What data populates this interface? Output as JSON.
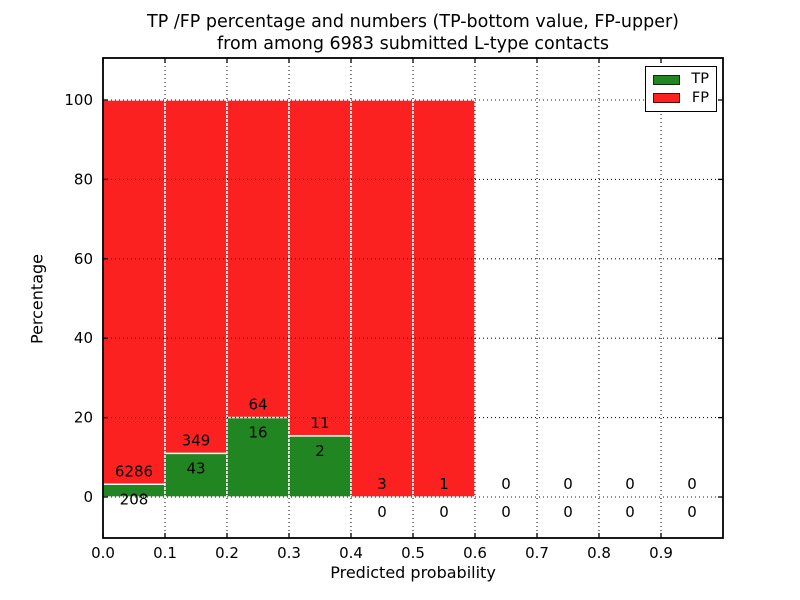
{
  "title": {
    "line1": "TP /FP percentage and numbers (TP-bottom value, FP-upper)",
    "line2": "from among 6983 submitted L-type contacts"
  },
  "axes": {
    "xlabel": "Predicted probability",
    "ylabel": "Percentage",
    "x_tick_labels": [
      "0.0",
      "0.1",
      "0.2",
      "0.3",
      "0.4",
      "0.5",
      "0.6",
      "0.7",
      "0.8",
      "0.9"
    ],
    "y_tick_labels": [
      "0",
      "20",
      "40",
      "60",
      "80",
      "100"
    ]
  },
  "legend": {
    "items": [
      {
        "label": "TP",
        "color": "#218521"
      },
      {
        "label": "FP",
        "color": "#fb2121"
      }
    ]
  },
  "colors": {
    "tp_green": "#218521",
    "fp_red": "#fb2121",
    "grid": "#1a1a1a",
    "frame": "#000000",
    "bar_edge": "#ffffff"
  },
  "chart_data": {
    "type": "bar",
    "stacked": true,
    "title": "TP /FP percentage and numbers (TP-bottom value, FP-upper) from among 6983 submitted L-type contacts",
    "xlabel": "Predicted probability",
    "ylabel": "Percentage",
    "total_submitted": 6983,
    "bin_start": [
      0.0,
      0.1,
      0.2,
      0.3,
      0.4,
      0.5,
      0.6,
      0.7,
      0.8,
      0.9
    ],
    "bin_width": 0.1,
    "series": [
      {
        "name": "TP",
        "color": "#218521",
        "counts": [
          208,
          43,
          16,
          2,
          0,
          0,
          0,
          0,
          0,
          0
        ],
        "percent": [
          3.2,
          10.97,
          20.0,
          15.38,
          0,
          0,
          0,
          0,
          0,
          0
        ]
      },
      {
        "name": "FP",
        "color": "#fb2121",
        "counts": [
          6286,
          349,
          64,
          11,
          3,
          1,
          0,
          0,
          0,
          0
        ],
        "percent": [
          96.8,
          89.03,
          80.0,
          84.62,
          100,
          100,
          0,
          0,
          0,
          0
        ]
      }
    ],
    "bar_total_percent": [
      100,
      100,
      100,
      100,
      100,
      100,
      0,
      0,
      0,
      0
    ],
    "xlim": [
      0.0,
      1.0
    ],
    "ylim": [
      -10.5,
      110.5
    ],
    "x_ticks": [
      0.0,
      0.1,
      0.2,
      0.3,
      0.4,
      0.5,
      0.6,
      0.7,
      0.8,
      0.9
    ],
    "y_ticks": [
      0,
      20,
      40,
      60,
      80,
      100
    ],
    "grid": "dotted",
    "legend_position": "upper right"
  }
}
